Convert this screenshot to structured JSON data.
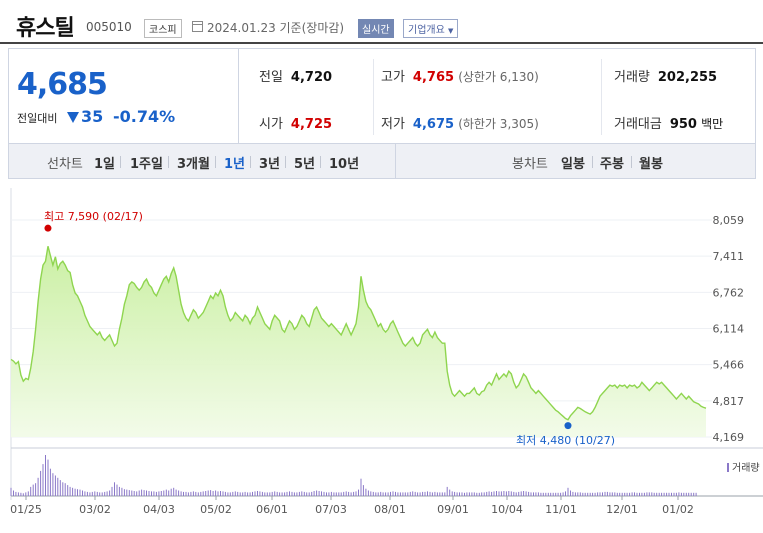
{
  "header": {
    "name": "휴스틸",
    "code": "005010",
    "market": "코스피",
    "date_text": "2024.01.23 기준(장마감)",
    "realtime_label": "실시간",
    "company_info_label": "기업개요",
    "calendar_icon": "calendar-icon"
  },
  "quote": {
    "price": "4,685",
    "change_label": "전일대비",
    "change": "35",
    "change_pct": "-0.74%",
    "down_icon": "down-triangle-icon",
    "prev_close_label": "전일",
    "prev_close": "4,720",
    "high_label": "고가",
    "high": "4,765",
    "upper_limit_text": "(상한가 6,130)",
    "volume_label": "거래량",
    "volume": "202,255",
    "open_label": "시가",
    "open": "4,725",
    "low_label": "저가",
    "low": "4,675",
    "lower_limit_text": "(하한가 3,305)",
    "amount_label": "거래대금",
    "amount": "950",
    "amount_unit": "백만"
  },
  "line_chart_controls": {
    "label": "선차트",
    "periods": [
      "1일",
      "1주일",
      "3개월",
      "1년",
      "3년",
      "5년",
      "10년"
    ],
    "selected": "1년"
  },
  "candle_chart_controls": {
    "label": "봉차트",
    "periods": [
      "일봉",
      "주봉",
      "월봉"
    ]
  },
  "colors": {
    "up": "#d10000",
    "down": "#1961c9",
    "area_line": "#8fd54f",
    "volume_bar": "#8a78c8"
  },
  "chart_data": {
    "type": "area",
    "title": "",
    "y_ticks": [
      "8,059",
      "7,411",
      "6,762",
      "6,114",
      "5,466",
      "4,817",
      "4,169"
    ],
    "ylim": [
      4169,
      8059
    ],
    "x_ticks": [
      "01/25",
      "03/02",
      "04/03",
      "05/02",
      "06/01",
      "07/03",
      "08/01",
      "09/01",
      "10/04",
      "11/01",
      "12/01",
      "01/02"
    ],
    "high_label": "최고 7,590 (02/17)",
    "low_label": "최저 4,480 (10/27)",
    "high": {
      "date": "02/17",
      "value": 7590
    },
    "low": {
      "date": "10/27",
      "value": 4480
    },
    "volume_label": "거래량",
    "series": [
      {
        "values": [
          5560,
          5530,
          5480,
          5520,
          5280,
          5170,
          5220,
          5200,
          5400,
          5700,
          6100,
          6600,
          7000,
          7250,
          7320,
          7590,
          7420,
          7250,
          7400,
          7180,
          7280,
          7320,
          7250,
          7150,
          7120,
          6900,
          6750,
          6700,
          6600,
          6500,
          6350,
          6250,
          6150,
          6100,
          6050,
          6000,
          6050,
          5950,
          5900,
          5950,
          6000,
          5900,
          5800,
          5850,
          6100,
          6300,
          6550,
          6700,
          6900,
          6950,
          6920,
          6850,
          6800,
          6850,
          6950,
          7000,
          6900,
          6850,
          6750,
          6700,
          6800,
          6900,
          7000,
          7050,
          6950,
          7100,
          7200,
          7050,
          6800,
          6550,
          6400,
          6300,
          6250,
          6350,
          6450,
          6400,
          6300,
          6350,
          6400,
          6500,
          6600,
          6700,
          6650,
          6750,
          6700,
          6800,
          6700,
          6500,
          6350,
          6250,
          6300,
          6400,
          6350,
          6300,
          6250,
          6350,
          6300,
          6200,
          6300,
          6350,
          6500,
          6400,
          6300,
          6200,
          6150,
          6100,
          6250,
          6350,
          6300,
          6250,
          6100,
          6050,
          6150,
          6250,
          6200,
          6100,
          6150,
          6250,
          6350,
          6300,
          6200,
          6150,
          6300,
          6450,
          6500,
          6400,
          6300,
          6250,
          6200,
          6150,
          6200,
          6150,
          6100,
          6050,
          6000,
          6100,
          6200,
          6100,
          6000,
          6100,
          6200,
          6500,
          7050,
          6800,
          6600,
          6500,
          6450,
          6350,
          6250,
          6150,
          6200,
          6100,
          6050,
          6100,
          6200,
          6250,
          6150,
          6050,
          5950,
          5850,
          5800,
          5850,
          5900,
          5950,
          5850,
          5800,
          5850,
          6000,
          6050,
          6100,
          6000,
          5950,
          6050,
          5950,
          5900,
          5850,
          5850,
          5350,
          5100,
          4950,
          4900,
          4950,
          5000,
          4950,
          4900,
          4950,
          4950,
          5000,
          5050,
          4950,
          4920,
          4980,
          5000,
          5100,
          5150,
          5100,
          5200,
          5300,
          5200,
          5250,
          5300,
          5250,
          5350,
          5300,
          5150,
          5050,
          5100,
          5200,
          5300,
          5250,
          5150,
          5050,
          5000,
          4950,
          5000,
          4950,
          4900,
          4850,
          4800,
          4750,
          4700,
          4650,
          4620,
          4580,
          4540,
          4500,
          4480,
          4550,
          4600,
          4650,
          4700,
          4680,
          4650,
          4620,
          4600,
          4580,
          4620,
          4700,
          4800,
          4900,
          4950,
          5000,
          5050,
          5100,
          5080,
          5100,
          5050,
          5100,
          5080,
          5100,
          5050,
          5100,
          5080,
          5100,
          5050,
          5080,
          5150,
          5100,
          5050,
          5000,
          5050,
          5100,
          5150,
          5120,
          5150,
          5100,
          5050,
          5000,
          4950,
          4900,
          4850,
          4900,
          4950,
          4900,
          4850,
          4900,
          4850,
          4800,
          4780,
          4760,
          4720,
          4700,
          4685
        ]
      }
    ],
    "volume": [
      18,
      12,
      9,
      8,
      7,
      6,
      8,
      10,
      20,
      25,
      28,
      40,
      55,
      70,
      90,
      80,
      60,
      50,
      45,
      40,
      35,
      30,
      28,
      24,
      20,
      18,
      16,
      15,
      14,
      12,
      10,
      9,
      8,
      9,
      10,
      9,
      8,
      8,
      9,
      10,
      12,
      20,
      30,
      25,
      20,
      18,
      15,
      14,
      13,
      12,
      11,
      10,
      12,
      14,
      13,
      12,
      11,
      10,
      10,
      9,
      10,
      11,
      12,
      14,
      12,
      16,
      18,
      14,
      12,
      10,
      9,
      9,
      8,
      9,
      10,
      9,
      8,
      9,
      10,
      11,
      12,
      13,
      11,
      12,
      10,
      11,
      10,
      9,
      8,
      8,
      9,
      10,
      9,
      8,
      8,
      9,
      8,
      8,
      9,
      10,
      11,
      10,
      9,
      8,
      8,
      8,
      9,
      10,
      9,
      8,
      8,
      8,
      9,
      10,
      9,
      8,
      8,
      9,
      10,
      9,
      8,
      8,
      9,
      11,
      12,
      11,
      10,
      9,
      8,
      8,
      9,
      8,
      8,
      8,
      8,
      9,
      10,
      9,
      8,
      9,
      10,
      14,
      38,
      24,
      16,
      12,
      10,
      9,
      8,
      8,
      9,
      8,
      8,
      8,
      9,
      10,
      9,
      8,
      8,
      8,
      8,
      8,
      9,
      10,
      9,
      8,
      8,
      9,
      9,
      10,
      9,
      8,
      9,
      8,
      8,
      8,
      8,
      20,
      14,
      10,
      9,
      8,
      8,
      8,
      7,
      8,
      8,
      8,
      8,
      7,
      7,
      8,
      8,
      9,
      10,
      9,
      10,
      11,
      10,
      10,
      11,
      10,
      11,
      10,
      9,
      8,
      9,
      10,
      11,
      10,
      9,
      8,
      8,
      8,
      8,
      7,
      7,
      7,
      7,
      7,
      7,
      7,
      7,
      7,
      8,
      10,
      18,
      12,
      9,
      8,
      8,
      8,
      7,
      7,
      7,
      7,
      7,
      7,
      8,
      8,
      8,
      9,
      9,
      8,
      8,
      8,
      7,
      7,
      7,
      7,
      7,
      7,
      8,
      8,
      7,
      7,
      7,
      7,
      8,
      8,
      8,
      7,
      7,
      7,
      7,
      7,
      7,
      7,
      7,
      7,
      7,
      8,
      7,
      7,
      7,
      7,
      7,
      7,
      7
    ]
  }
}
